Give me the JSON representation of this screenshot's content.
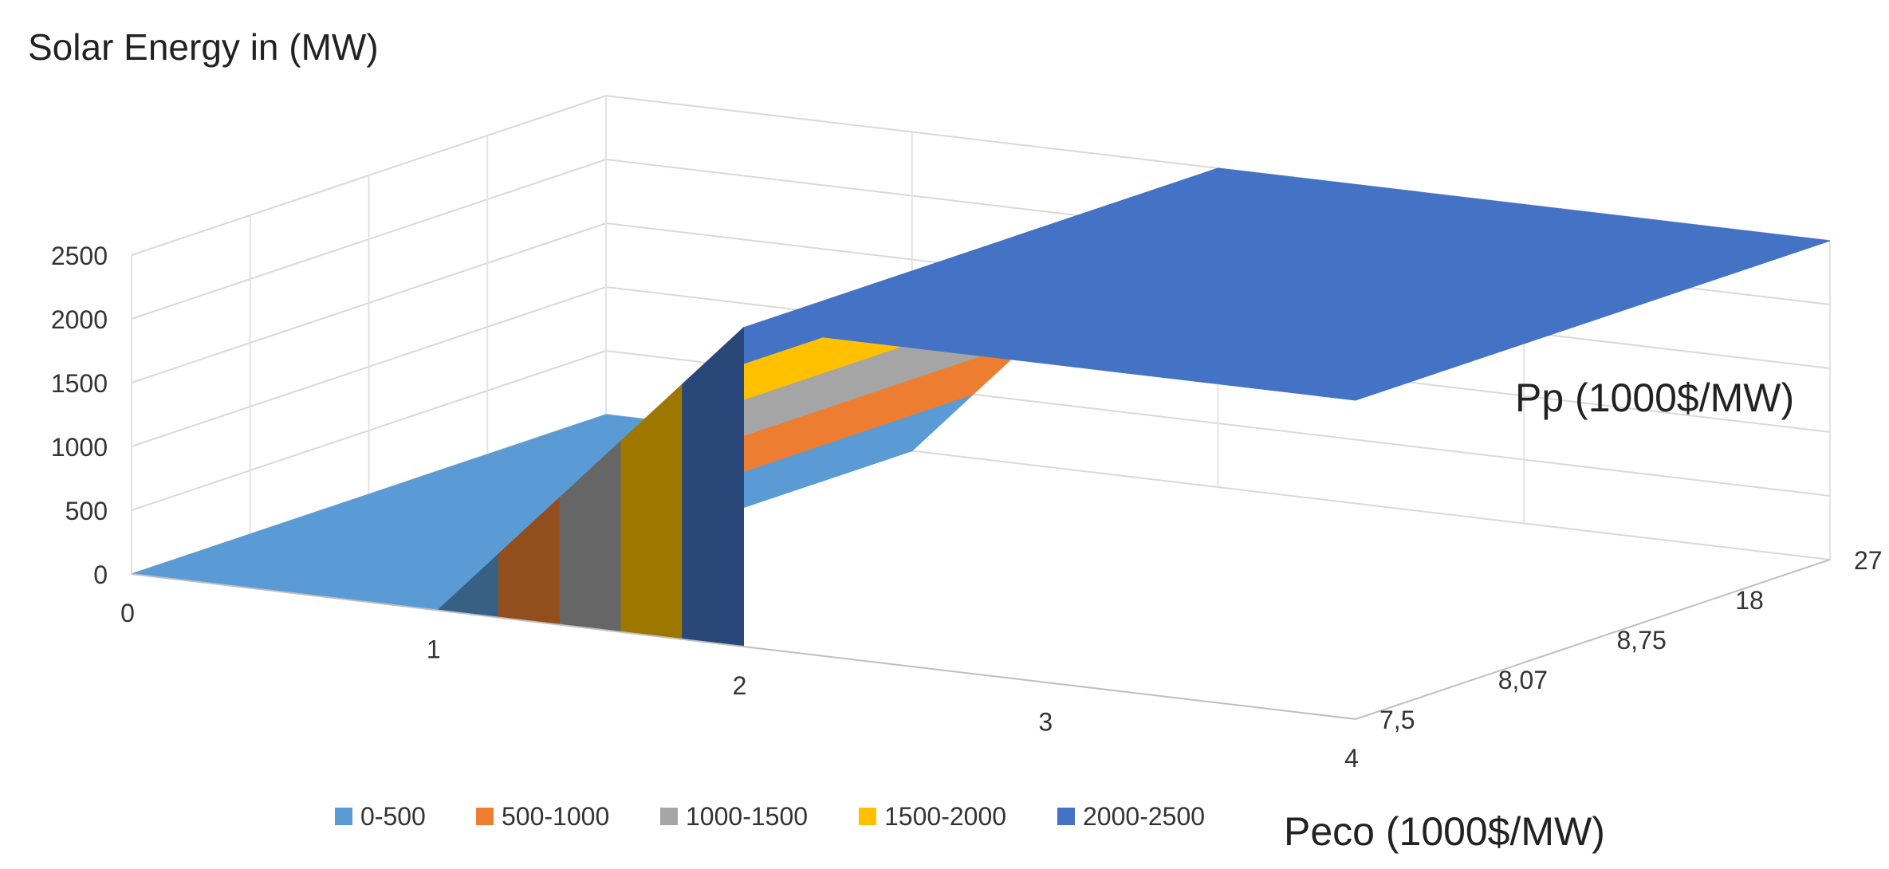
{
  "chart_data": {
    "type": "surface",
    "title": "Solar Energy in (MW)",
    "xlabel": "Peco (1000$/MW)",
    "ylabel": "Pp (1000$/MW)",
    "zlabel": "",
    "x": [
      0,
      1,
      2,
      3,
      4
    ],
    "y": [
      "27",
      "18",
      "8,75",
      "8,07",
      "7,5"
    ],
    "z_ticks": [
      0,
      500,
      1000,
      1500,
      2000,
      2500
    ],
    "zlim": [
      0,
      2500
    ],
    "legend_position": "bottom",
    "bands": [
      {
        "name": "0-500",
        "color": "#5B9BD5"
      },
      {
        "name": "500-1000",
        "color": "#ED7D31"
      },
      {
        "name": "1000-1500",
        "color": "#A5A5A5"
      },
      {
        "name": "1500-2000",
        "color": "#FFC000"
      },
      {
        "name": "2000-2500",
        "color": "#4472C4"
      }
    ],
    "values": [
      [
        0,
        0,
        0,
        0,
        0
      ],
      [
        0,
        0,
        0,
        0,
        0
      ],
      [
        2500,
        2500,
        2500,
        2500,
        2500
      ],
      [
        2500,
        2500,
        2500,
        2500,
        2500
      ],
      [
        2500,
        2500,
        2500,
        2500,
        2500
      ]
    ],
    "grid": true
  }
}
